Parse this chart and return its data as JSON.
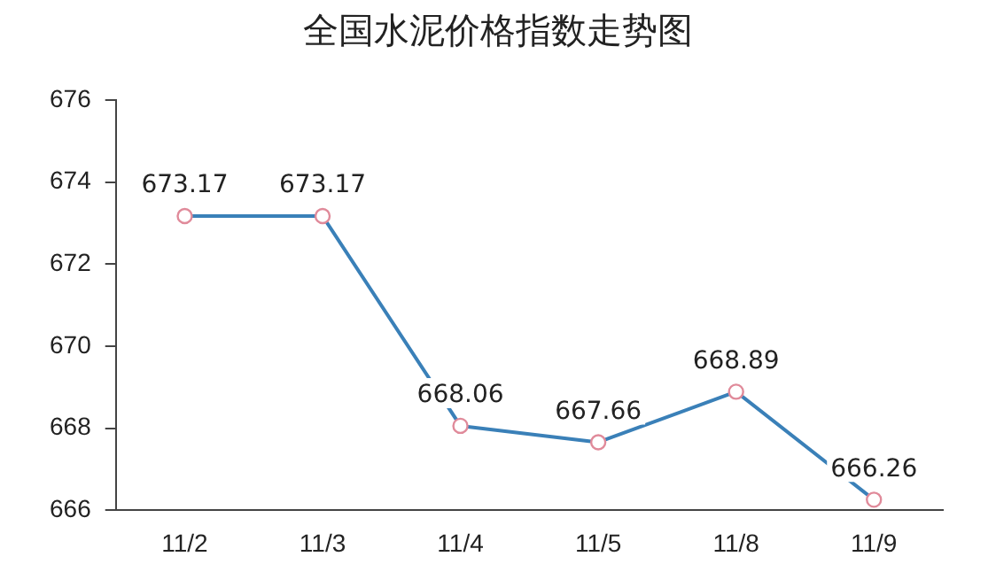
{
  "chart_data": {
    "type": "line",
    "title": "全国水泥价格指数走势图",
    "categories": [
      "11/2",
      "11/3",
      "11/4",
      "11/5",
      "11/8",
      "11/9"
    ],
    "series": [
      {
        "color": "#3a80b8",
        "values": [
          673.17,
          673.17,
          668.06,
          667.66,
          668.89,
          666.26
        ]
      }
    ],
    "ylim": [
      666,
      676
    ],
    "yticks": [
      666,
      668,
      670,
      672,
      674,
      676
    ],
    "grid": false,
    "legend": false,
    "marker": "circle",
    "line_style": "solid",
    "data_labels": true
  }
}
